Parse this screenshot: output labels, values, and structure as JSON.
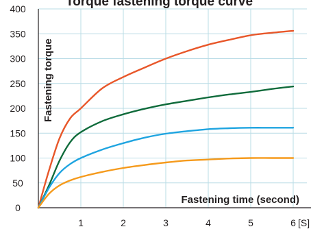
{
  "chart_data": {
    "type": "line",
    "title": "Torque fastening torque curve",
    "xlabel": "Fastening time (second)",
    "ylabel": "Fastening torque",
    "x_unit": "[S]",
    "xlim": [
      0,
      6
    ],
    "ylim": [
      0,
      400
    ],
    "x_ticks": [
      1,
      2,
      3,
      4,
      5,
      6
    ],
    "y_ticks": [
      0,
      50,
      100,
      150,
      200,
      250,
      300,
      350,
      400
    ],
    "grid": true,
    "series": [
      {
        "color": "#e8572a",
        "x": [
          0,
          0.25,
          0.5,
          0.75,
          1,
          1.5,
          2,
          2.5,
          3,
          3.5,
          4,
          4.5,
          5,
          5.5,
          6
        ],
        "values": [
          0,
          75,
          140,
          180,
          200,
          240,
          263,
          282,
          300,
          315,
          328,
          338,
          347,
          352,
          356
        ]
      },
      {
        "color": "#0f6b3b",
        "x": [
          0,
          0.25,
          0.5,
          0.75,
          1,
          1.5,
          2,
          2.5,
          3,
          3.5,
          4,
          4.5,
          5,
          5.5,
          6
        ],
        "values": [
          0,
          45,
          95,
          132,
          152,
          174,
          188,
          199,
          208,
          215,
          222,
          228,
          233,
          239,
          244
        ]
      },
      {
        "color": "#1ea4e0",
        "x": [
          0,
          0.25,
          0.5,
          0.75,
          1,
          1.5,
          2,
          2.5,
          3,
          3.5,
          4,
          4.5,
          5,
          5.5,
          6
        ],
        "values": [
          0,
          40,
          70,
          88,
          100,
          117,
          130,
          141,
          149,
          154,
          158,
          160,
          161,
          161,
          161
        ]
      },
      {
        "color": "#f59a1c",
        "x": [
          0,
          0.25,
          0.5,
          0.75,
          1,
          1.5,
          2,
          2.5,
          3,
          3.5,
          4,
          4.5,
          5,
          5.5,
          6
        ],
        "values": [
          0,
          28,
          45,
          55,
          62,
          72,
          80,
          86,
          91,
          95,
          97,
          99,
          100,
          100,
          100
        ]
      }
    ]
  }
}
